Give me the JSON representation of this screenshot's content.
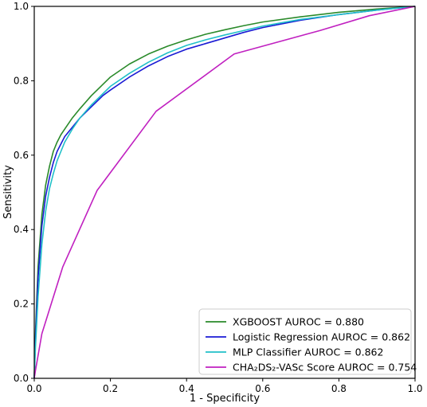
{
  "chart_data": {
    "type": "line",
    "title": "",
    "xlabel": "1 - Specificity",
    "ylabel": "Sensitivity",
    "xlim": [
      0.0,
      1.0
    ],
    "ylim": [
      0.0,
      1.0
    ],
    "xticks": [
      "0.0",
      "0.2",
      "0.4",
      "0.6",
      "0.8",
      "1.0"
    ],
    "yticks": [
      "0.0",
      "0.2",
      "0.4",
      "0.6",
      "0.8",
      "1.0"
    ],
    "grid": false,
    "legend_position": "bottom-right",
    "series": [
      {
        "name": "XGBOOST AUROC = 0.880",
        "color": "#2a8a2a",
        "points": [
          [
            0,
            0
          ],
          [
            0.003,
            0.12
          ],
          [
            0.01,
            0.3
          ],
          [
            0.02,
            0.44
          ],
          [
            0.03,
            0.52
          ],
          [
            0.04,
            0.57
          ],
          [
            0.05,
            0.61
          ],
          [
            0.06,
            0.635
          ],
          [
            0.07,
            0.655
          ],
          [
            0.08,
            0.67
          ],
          [
            0.1,
            0.7
          ],
          [
            0.12,
            0.725
          ],
          [
            0.15,
            0.76
          ],
          [
            0.18,
            0.79
          ],
          [
            0.2,
            0.81
          ],
          [
            0.25,
            0.845
          ],
          [
            0.3,
            0.872
          ],
          [
            0.35,
            0.893
          ],
          [
            0.4,
            0.91
          ],
          [
            0.45,
            0.925
          ],
          [
            0.5,
            0.937
          ],
          [
            0.55,
            0.948
          ],
          [
            0.6,
            0.958
          ],
          [
            0.7,
            0.972
          ],
          [
            0.8,
            0.984
          ],
          [
            0.9,
            0.993
          ],
          [
            1.0,
            1.0
          ]
        ]
      },
      {
        "name": "Logistic Regression AUROC = 0.862",
        "color": "#1a1ad4",
        "points": [
          [
            0,
            0
          ],
          [
            0.003,
            0.1
          ],
          [
            0.01,
            0.27
          ],
          [
            0.02,
            0.41
          ],
          [
            0.03,
            0.49
          ],
          [
            0.04,
            0.54
          ],
          [
            0.05,
            0.58
          ],
          [
            0.06,
            0.61
          ],
          [
            0.07,
            0.63
          ],
          [
            0.08,
            0.65
          ],
          [
            0.1,
            0.675
          ],
          [
            0.12,
            0.7
          ],
          [
            0.15,
            0.73
          ],
          [
            0.18,
            0.76
          ],
          [
            0.2,
            0.775
          ],
          [
            0.25,
            0.81
          ],
          [
            0.3,
            0.84
          ],
          [
            0.35,
            0.865
          ],
          [
            0.4,
            0.885
          ],
          [
            0.45,
            0.9
          ],
          [
            0.5,
            0.915
          ],
          [
            0.55,
            0.93
          ],
          [
            0.6,
            0.943
          ],
          [
            0.7,
            0.963
          ],
          [
            0.8,
            0.978
          ],
          [
            0.9,
            0.99
          ],
          [
            1.0,
            1.0
          ]
        ]
      },
      {
        "name": "MLP Classifier AUROC = 0.862",
        "color": "#20c0c8",
        "points": [
          [
            0,
            0
          ],
          [
            0.003,
            0.08
          ],
          [
            0.01,
            0.22
          ],
          [
            0.02,
            0.36
          ],
          [
            0.03,
            0.45
          ],
          [
            0.04,
            0.51
          ],
          [
            0.05,
            0.55
          ],
          [
            0.06,
            0.585
          ],
          [
            0.07,
            0.61
          ],
          [
            0.08,
            0.635
          ],
          [
            0.1,
            0.67
          ],
          [
            0.12,
            0.7
          ],
          [
            0.15,
            0.735
          ],
          [
            0.18,
            0.765
          ],
          [
            0.2,
            0.785
          ],
          [
            0.25,
            0.82
          ],
          [
            0.3,
            0.85
          ],
          [
            0.35,
            0.875
          ],
          [
            0.4,
            0.895
          ],
          [
            0.45,
            0.91
          ],
          [
            0.5,
            0.923
          ],
          [
            0.55,
            0.935
          ],
          [
            0.6,
            0.947
          ],
          [
            0.7,
            0.965
          ],
          [
            0.8,
            0.978
          ],
          [
            0.9,
            0.99
          ],
          [
            1.0,
            1.0
          ]
        ]
      },
      {
        "name": "CHA₂DS₂-VASc Score AUROC = 0.754",
        "color": "#c020c0",
        "points": [
          [
            0,
            0
          ],
          [
            0.003,
            0.02
          ],
          [
            0.02,
            0.12
          ],
          [
            0.075,
            0.3
          ],
          [
            0.165,
            0.505
          ],
          [
            0.32,
            0.718
          ],
          [
            0.525,
            0.872
          ],
          [
            0.75,
            0.935
          ],
          [
            0.88,
            0.975
          ],
          [
            1.0,
            1.0
          ]
        ]
      }
    ]
  }
}
